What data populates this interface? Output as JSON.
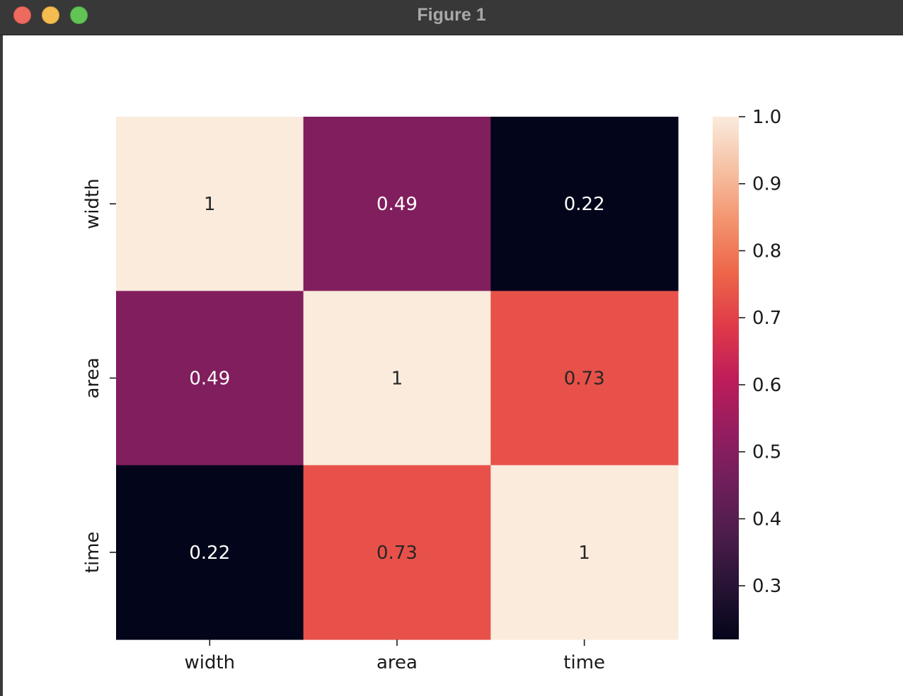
{
  "window": {
    "title": "Figure 1",
    "buttons": {
      "close": "close",
      "minimize": "minimize",
      "zoom": "zoom"
    }
  },
  "chart_data": {
    "type": "heatmap",
    "title": "",
    "xlabel": "",
    "ylabel": "",
    "x_categories": [
      "width",
      "area",
      "time"
    ],
    "y_categories": [
      "width",
      "area",
      "time"
    ],
    "values": [
      [
        1,
        0.49,
        0.22
      ],
      [
        0.49,
        1,
        0.73
      ],
      [
        0.22,
        0.73,
        1
      ]
    ],
    "annotations": [
      [
        "1",
        "0.49",
        "0.22"
      ],
      [
        "0.49",
        "1",
        "0.73"
      ],
      [
        "0.22",
        "0.73",
        "1"
      ]
    ],
    "colormap": "rocket",
    "colorbar": {
      "vmin": 0.22,
      "vmax": 1.0,
      "ticks": [
        1.0,
        0.9,
        0.8,
        0.7,
        0.6,
        0.5,
        0.4,
        0.3
      ],
      "tick_labels": [
        "1.0",
        "0.9",
        "0.8",
        "0.7",
        "0.6",
        "0.5",
        "0.4",
        "0.3"
      ],
      "placement": "right"
    },
    "grid": false
  }
}
